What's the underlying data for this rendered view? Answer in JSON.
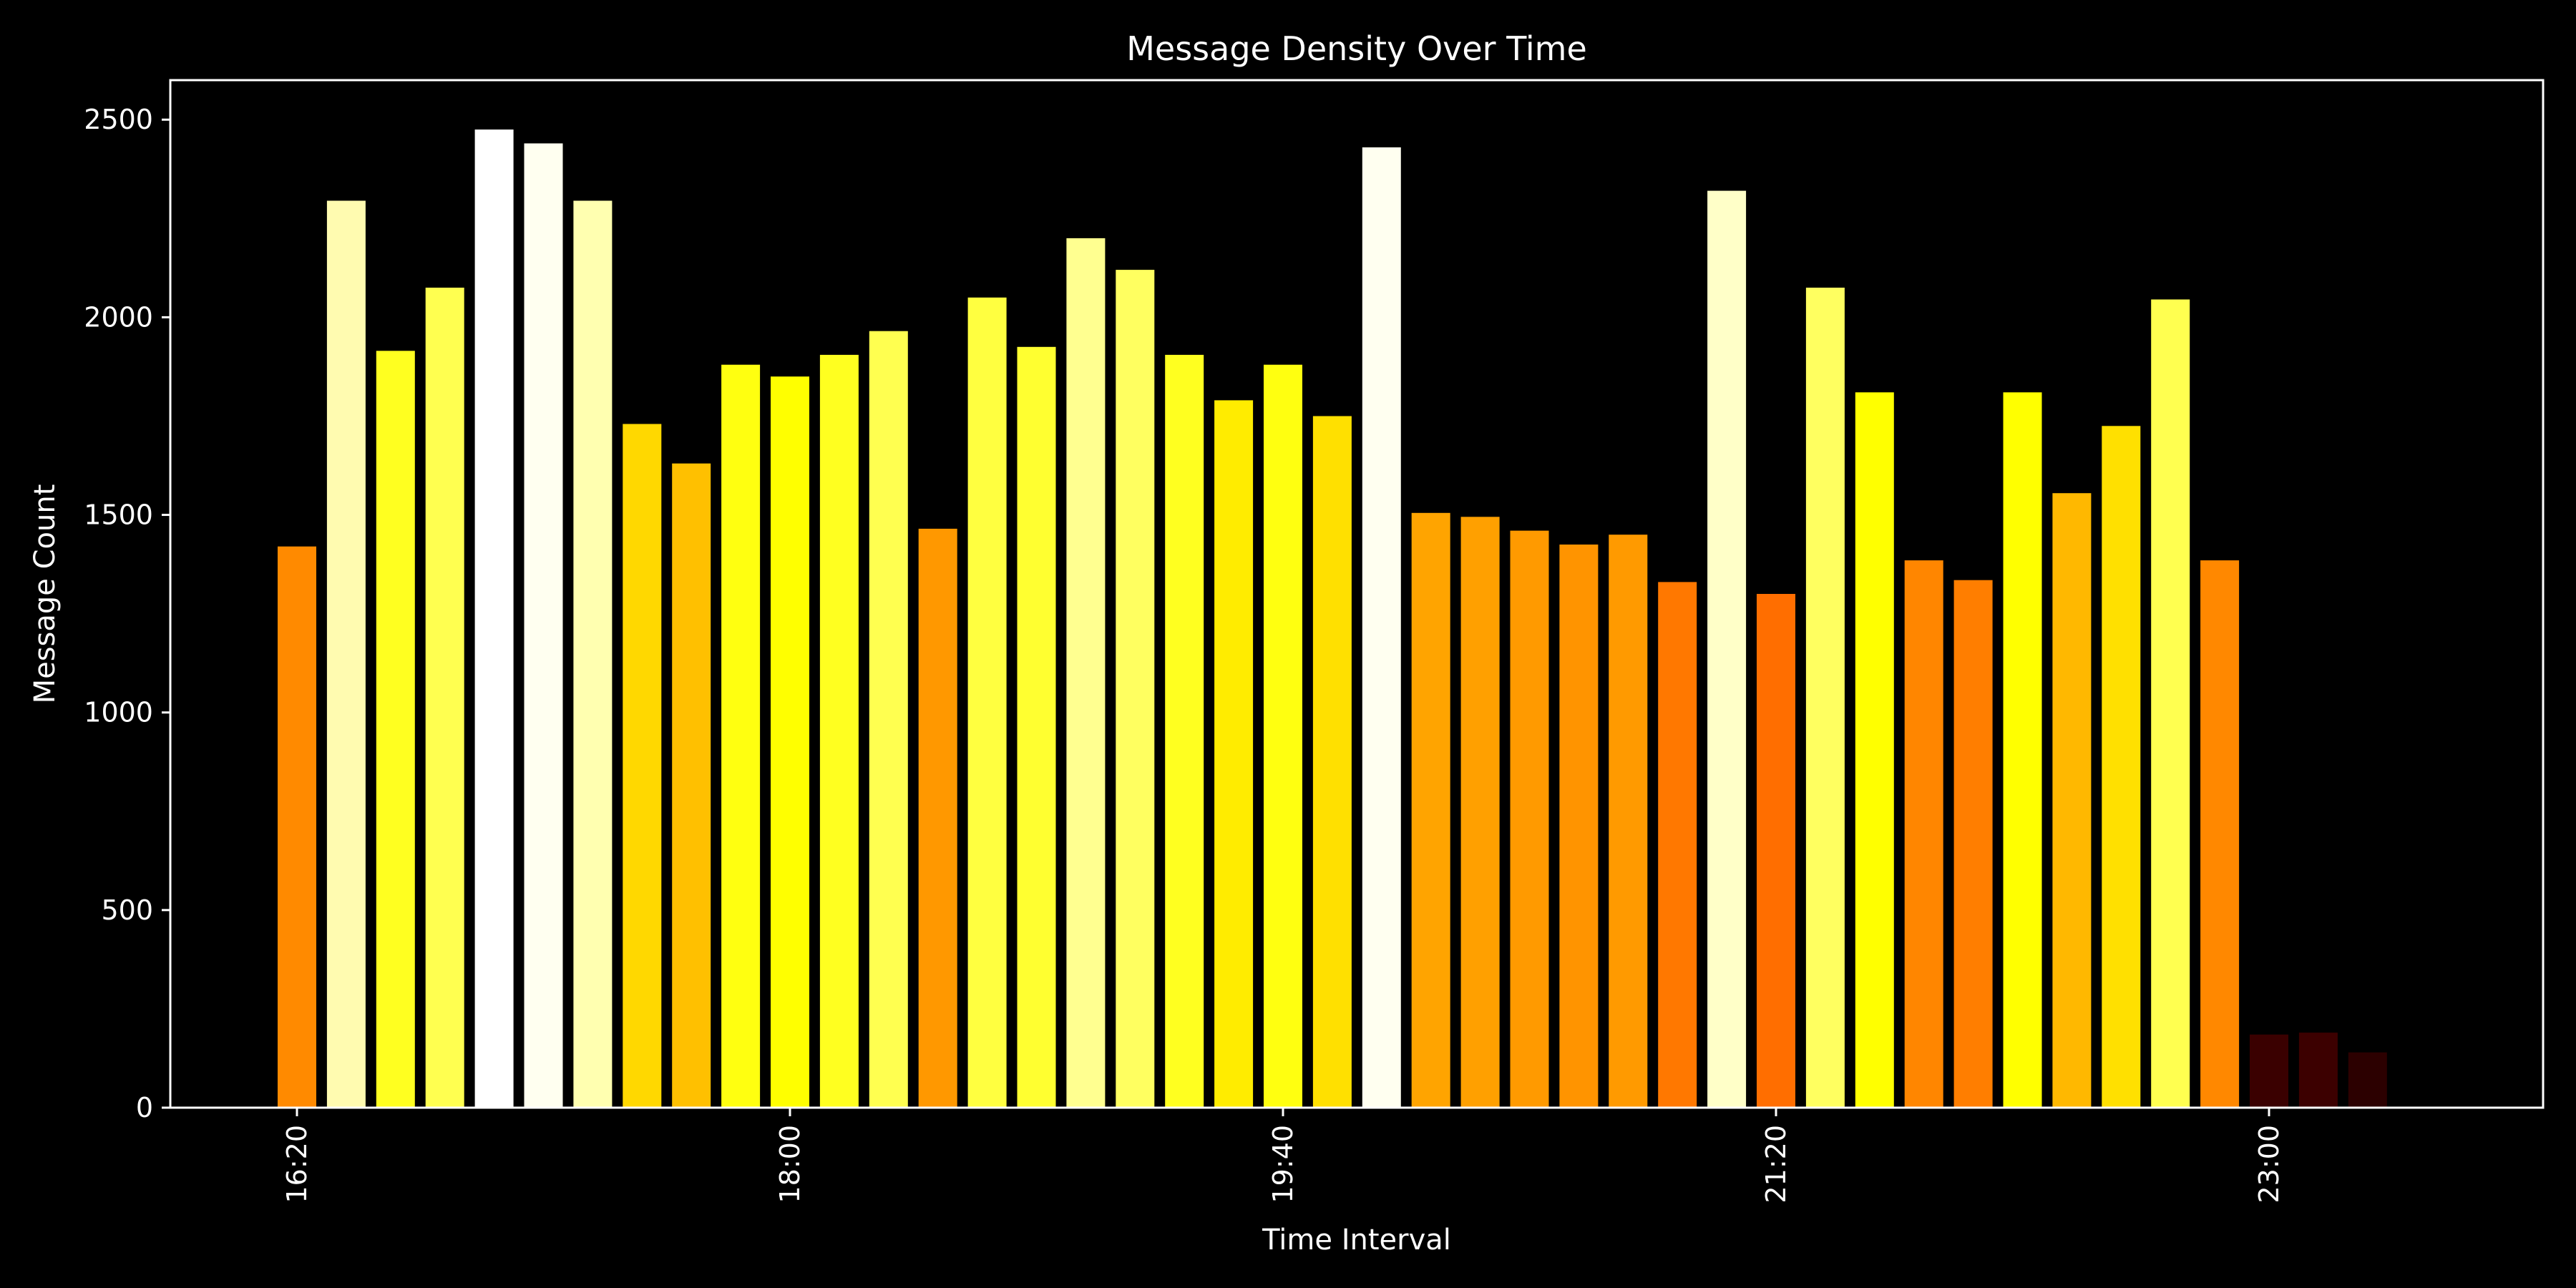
{
  "chart_data": {
    "type": "bar",
    "title": "Message Density Over Time",
    "xlabel": "Time Interval",
    "ylabel": "Message Count",
    "ylim": [
      0,
      2600
    ],
    "yticks": [
      0,
      500,
      1000,
      1500,
      2000,
      2500
    ],
    "xticks": [
      "16:20",
      "18:00",
      "19:40",
      "21:20",
      "23:00"
    ],
    "x_tick_rotation": "vertical",
    "grid": false,
    "background": "#000000",
    "colormap": "hot",
    "x": [
      "16:20",
      "16:30",
      "16:40",
      "16:50",
      "17:00",
      "17:10",
      "17:20",
      "17:30",
      "17:40",
      "17:50",
      "18:00",
      "18:10",
      "18:20",
      "18:30",
      "18:40",
      "18:50",
      "19:00",
      "19:10",
      "19:20",
      "19:30",
      "19:40",
      "19:50",
      "20:00",
      "20:10",
      "20:20",
      "20:30",
      "20:40",
      "20:50",
      "21:00",
      "21:10",
      "21:20",
      "21:30",
      "21:40",
      "21:50",
      "22:00",
      "22:10",
      "22:20",
      "22:30",
      "22:40",
      "22:50",
      "23:00",
      "23:10",
      "23:20"
    ],
    "values": [
      1420,
      2295,
      1915,
      2075,
      2475,
      2440,
      2295,
      1730,
      1630,
      1880,
      1850,
      1905,
      1965,
      1465,
      2050,
      1925,
      2200,
      2120,
      1905,
      1790,
      1880,
      1750,
      2430,
      1505,
      1495,
      1460,
      1425,
      1450,
      1330,
      2320,
      1300,
      2075,
      1810,
      1385,
      1335,
      1810,
      1555,
      1725,
      2045,
      1385,
      185,
      190,
      140
    ],
    "colors": [
      "#ff8a00",
      "#fffbb0",
      "#ffff20",
      "#ffff50",
      "#ffffff",
      "#fffff0",
      "#ffffb0",
      "#ffd800",
      "#ffc000",
      "#ffff10",
      "#ffff00",
      "#ffff20",
      "#ffff50",
      "#ff9800",
      "#ffff40",
      "#ffff30",
      "#ffff90",
      "#ffff60",
      "#ffff20",
      "#ffec00",
      "#ffff10",
      "#ffe000",
      "#fffff0",
      "#ffa400",
      "#ffa000",
      "#ff9a00",
      "#ff9400",
      "#ff9a00",
      "#ff7800",
      "#ffffc8",
      "#ff6e00",
      "#ffff60",
      "#ffff00",
      "#ff8600",
      "#ff7e00",
      "#ffff00",
      "#ffb800",
      "#ffe000",
      "#ffff50",
      "#ff8800",
      "#3a0000",
      "#3c0000",
      "#2c0000"
    ]
  }
}
